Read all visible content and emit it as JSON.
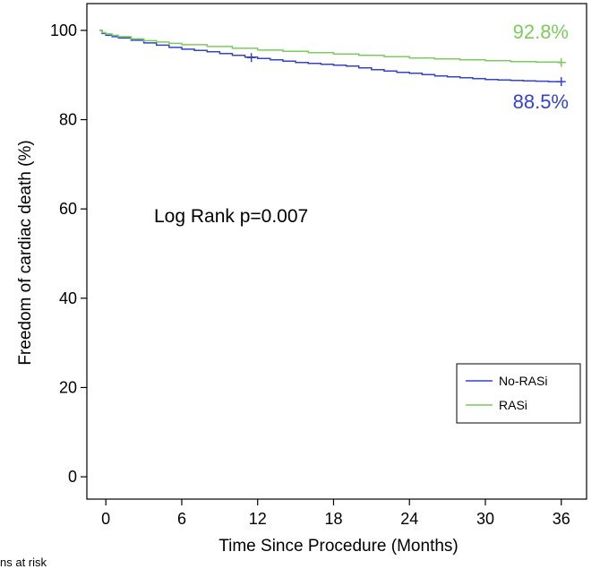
{
  "chart_data": {
    "type": "line",
    "title": "",
    "xlabel": "Time Since Procedure (Months)",
    "ylabel": "Freedom of cardiac death (%)",
    "xlim": [
      -1.5,
      38
    ],
    "ylim": [
      -5,
      106
    ],
    "xticks": [
      0,
      6,
      12,
      18,
      24,
      30,
      36
    ],
    "yticks": [
      0,
      20,
      40,
      60,
      80,
      100
    ],
    "grid": false,
    "legend_position": "bottom-right",
    "annotation": "Log Rank p=0.007",
    "series": [
      {
        "name": "No-RASi",
        "color": "#3344cc",
        "end_label": "88.5%",
        "censor_marks": [
          [
            11.5,
            93.9
          ],
          [
            36,
            88.5
          ]
        ],
        "x": [
          -0.5,
          -0.3,
          0,
          0.5,
          1,
          2,
          3,
          4,
          5,
          6,
          7,
          8,
          9,
          10,
          11,
          12,
          13,
          14,
          15,
          16,
          17,
          18,
          19,
          20,
          21,
          22,
          23,
          24,
          25,
          26,
          27,
          28,
          29,
          30,
          31,
          32,
          33,
          34,
          35,
          36
        ],
        "y": [
          100,
          99.3,
          98.9,
          98.6,
          98.3,
          97.8,
          97.2,
          96.7,
          96.2,
          95.8,
          95.5,
          95.2,
          94.8,
          94.4,
          94.0,
          93.7,
          93.4,
          93.1,
          92.8,
          92.6,
          92.4,
          92.2,
          92.0,
          91.6,
          91.2,
          90.9,
          90.6,
          90.4,
          90.1,
          89.8,
          89.6,
          89.4,
          89.2,
          89.0,
          88.9,
          88.8,
          88.7,
          88.6,
          88.5,
          88.5
        ]
      },
      {
        "name": "RASi",
        "color": "#7ccc5c",
        "end_label": "92.8%",
        "censor_marks": [
          [
            36,
            92.8
          ]
        ],
        "x": [
          -0.5,
          -0.3,
          0,
          0.5,
          1,
          2,
          3,
          4,
          5,
          6,
          8,
          10,
          12,
          14,
          16,
          18,
          20,
          22,
          24,
          26,
          28,
          30,
          32,
          34,
          36
        ],
        "y": [
          100,
          99.5,
          99.2,
          98.9,
          98.6,
          98.1,
          97.7,
          97.4,
          97.1,
          96.8,
          96.4,
          96.0,
          95.6,
          95.3,
          95.0,
          94.7,
          94.4,
          94.1,
          93.8,
          93.6,
          93.4,
          93.2,
          93.0,
          92.9,
          92.8
        ]
      }
    ]
  },
  "footer_note": "ns at risk"
}
